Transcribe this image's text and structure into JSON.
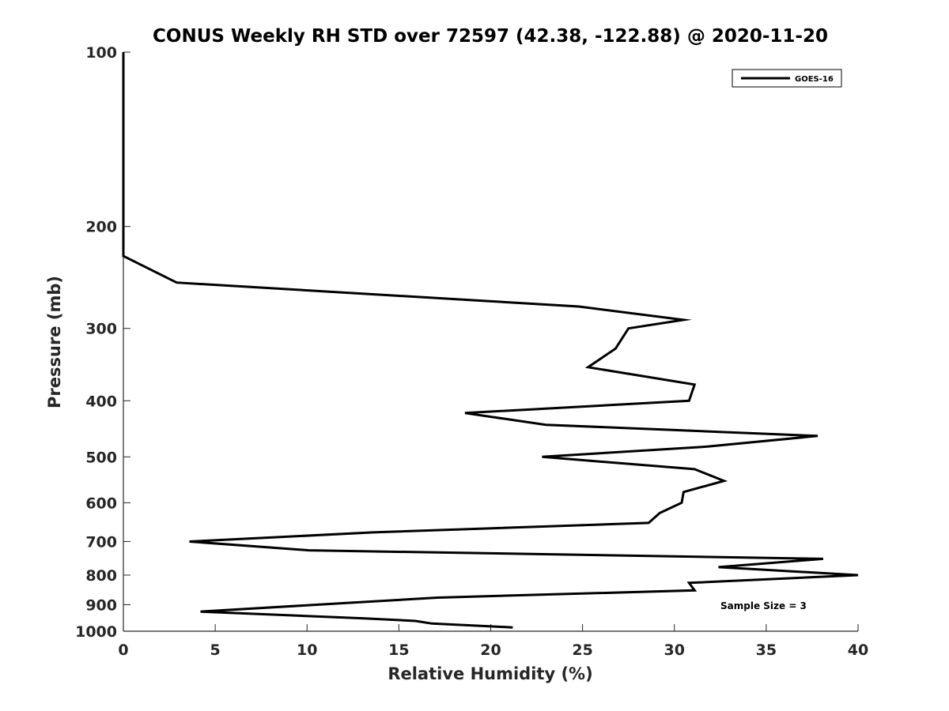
{
  "chart_data": {
    "type": "line",
    "title": "CONUS Weekly RH STD over 72597 (42.38, -122.88) @ 2020-11-20",
    "xlabel": "Relative Humidity (%)",
    "ylabel": "Pressure (mb)",
    "xlim": [
      0,
      40
    ],
    "ylim": [
      100,
      1000
    ],
    "y_scale": "log",
    "y_reversed": true,
    "x_ticks": [
      "0",
      "5",
      "10",
      "15",
      "20",
      "25",
      "30",
      "35",
      "40"
    ],
    "y_ticks": [
      "100",
      "200",
      "300",
      "400",
      "500",
      "600",
      "700",
      "800",
      "900",
      "1000"
    ],
    "grid": false,
    "legend_position": "top-right",
    "annotation": "Sample Size = 3",
    "series": [
      {
        "name": "GOES-16",
        "color": "#000000",
        "points": [
          [
            0,
            100
          ],
          [
            0,
            150
          ],
          [
            0,
            200
          ],
          [
            0,
            225
          ],
          [
            2.9,
            250
          ],
          [
            24.8,
            275
          ],
          [
            30.5,
            290
          ],
          [
            27.5,
            300
          ],
          [
            26.8,
            325
          ],
          [
            25.3,
            350
          ],
          [
            31.1,
            375
          ],
          [
            30.8,
            400
          ],
          [
            18.6,
            420
          ],
          [
            23,
            440
          ],
          [
            37.8,
            460
          ],
          [
            31.8,
            480
          ],
          [
            22.8,
            500
          ],
          [
            31.1,
            525
          ],
          [
            32.7,
            550
          ],
          [
            30.5,
            575
          ],
          [
            30.4,
            600
          ],
          [
            29.2,
            625
          ],
          [
            28.6,
            650
          ],
          [
            13.6,
            675
          ],
          [
            3.6,
            700
          ],
          [
            10.1,
            725
          ],
          [
            38.1,
            750
          ],
          [
            32.4,
            775
          ],
          [
            40,
            800
          ],
          [
            30.8,
            825
          ],
          [
            31.1,
            850
          ],
          [
            17.1,
            875
          ],
          [
            10.5,
            900
          ],
          [
            4.2,
            925
          ],
          [
            13.1,
            950
          ],
          [
            15.9,
            960
          ],
          [
            16.8,
            970
          ],
          [
            21.2,
            985
          ]
        ]
      }
    ]
  }
}
